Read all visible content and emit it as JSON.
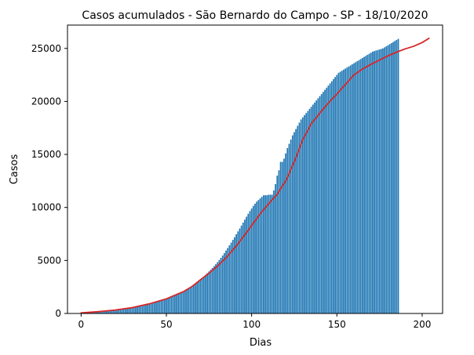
{
  "chart_data": {
    "type": "bar",
    "title": "Casos acumulados - São Bernardo do Campo - SP - 18/10/2020",
    "xlabel": "Dias",
    "ylabel": "Casos",
    "xlim": [
      -8,
      212
    ],
    "ylim": [
      0,
      27200
    ],
    "xticks": [
      0,
      50,
      100,
      150,
      200
    ],
    "yticks": [
      0,
      5000,
      10000,
      15000,
      20000,
      25000
    ],
    "grid": false,
    "bar_color": "#1f77b4",
    "line_color": "#d62728",
    "series": [
      {
        "type": "bar",
        "x_start": 0,
        "values": [
          50,
          70,
          80,
          95,
          110,
          120,
          130,
          140,
          150,
          160,
          170,
          185,
          200,
          215,
          230,
          245,
          260,
          275,
          290,
          305,
          320,
          340,
          360,
          380,
          400,
          420,
          445,
          470,
          495,
          520,
          550,
          580,
          610,
          645,
          680,
          715,
          750,
          790,
          830,
          870,
          910,
          950,
          995,
          1040,
          1085,
          1130,
          1180,
          1230,
          1280,
          1330,
          1380,
          1440,
          1500,
          1560,
          1620,
          1680,
          1750,
          1820,
          1900,
          1980,
          2060,
          2150,
          2240,
          2330,
          2430,
          2540,
          2650,
          2770,
          2900,
          3040,
          3180,
          3330,
          3480,
          3640,
          3800,
          3960,
          4120,
          4290,
          4470,
          4650,
          4840,
          5040,
          5250,
          5470,
          5700,
          5940,
          6180,
          6430,
          6680,
          6940,
          7200,
          7470,
          7740,
          8010,
          8290,
          8570,
          8850,
          9130,
          9400,
          9660,
          9900,
          10150,
          10350,
          10550,
          10700,
          10850,
          11000,
          11150,
          11150,
          11150,
          11200,
          11200,
          11200,
          11600,
          12200,
          13000,
          13500,
          14300,
          14300,
          14600,
          15100,
          15600,
          16000,
          16400,
          16800,
          17100,
          17400,
          17700,
          18000,
          18300,
          18500,
          18700,
          18900,
          19100,
          19300,
          19500,
          19700,
          19900,
          20100,
          20300,
          20500,
          20700,
          20900,
          21100,
          21300,
          21500,
          21700,
          21900,
          22100,
          22300,
          22500,
          22700,
          22800,
          22900,
          23000,
          23100,
          23200,
          23300,
          23400,
          23500,
          23600,
          23700,
          23800,
          23900,
          24000,
          24100,
          24200,
          24300,
          24400,
          24500,
          24600,
          24700,
          24750,
          24800,
          24850,
          24900,
          24950,
          25000,
          25100,
          25200,
          25300,
          25400,
          25500,
          25600,
          25700,
          25800,
          25900
        ]
      },
      {
        "type": "line",
        "x": [
          0,
          10,
          20,
          30,
          40,
          50,
          60,
          65,
          70,
          75,
          80,
          85,
          90,
          95,
          100,
          105,
          110,
          115,
          120,
          125,
          130,
          135,
          140,
          145,
          150,
          155,
          160,
          165,
          170,
          175,
          180,
          185,
          190,
          195,
          200,
          204
        ],
        "values": [
          50,
          170,
          320,
          550,
          910,
          1380,
          2060,
          2540,
          3180,
          3800,
          4470,
          5250,
          6180,
          7200,
          8290,
          9400,
          10350,
          11250,
          12500,
          14300,
          16400,
          17900,
          18900,
          19850,
          20700,
          21600,
          22500,
          23050,
          23500,
          23900,
          24300,
          24650,
          24950,
          25200,
          25550,
          25950
        ]
      }
    ]
  }
}
